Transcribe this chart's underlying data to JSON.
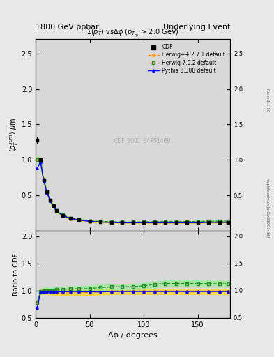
{
  "title_left": "1800 GeV ppbar",
  "title_right": "Underlying Event",
  "plot_title": "Σ(p_{T}) vsΔϕ (p_{Tη1} > 2.0 GeV)",
  "xlabel": "Δϕ / degrees",
  "ylabel_main": "⟨ p_T^{sum} ⟩ μm",
  "ylabel_ratio": "Ratio to CDF",
  "watermark": "CDF_2001_S4751469",
  "right_label_top": "Rivet 3.1.10",
  "right_label_bottom": "mcplots.cern.ch [arXiv:1306.3436]",
  "ylim_main": [
    0,
    2.7
  ],
  "ylim_ratio": [
    0.5,
    2.1
  ],
  "xlim": [
    0,
    180
  ],
  "bg_color": "#e8e8e8",
  "plot_bg_color": "#d8d8d8",
  "legend_entries": [
    "CDF",
    "Herwig++ 2.7.1 default",
    "Herwig 7.0.2 default",
    "Pythia 8.308 default"
  ],
  "colors": {
    "cdf": "#000000",
    "herwigpp": "#FF8C00",
    "herwig7": "#228B22",
    "pythia": "#0000FF"
  },
  "cdf_x": [
    1.5,
    4.5,
    7.5,
    10.5,
    13.5,
    16.5,
    19.5,
    25,
    32,
    40,
    50,
    60,
    70,
    80,
    90,
    100,
    110,
    120,
    130,
    140,
    150,
    160,
    170,
    178
  ],
  "cdf_y": [
    1.28,
    1.0,
    0.72,
    0.55,
    0.43,
    0.35,
    0.28,
    0.22,
    0.175,
    0.155,
    0.135,
    0.125,
    0.12,
    0.115,
    0.115,
    0.115,
    0.115,
    0.115,
    0.115,
    0.115,
    0.115,
    0.12,
    0.12,
    0.12
  ],
  "cdf_yerr": [
    0.05,
    0.03,
    0.025,
    0.02,
    0.015,
    0.012,
    0.01,
    0.008,
    0.006,
    0.005,
    0.004,
    0.004,
    0.004,
    0.004,
    0.004,
    0.004,
    0.004,
    0.004,
    0.004,
    0.004,
    0.004,
    0.004,
    0.004,
    0.004
  ],
  "herwigpp_x": [
    1.5,
    4.5,
    7.5,
    10.5,
    13.5,
    16.5,
    19.5,
    25,
    32,
    40,
    50,
    60,
    70,
    80,
    90,
    100,
    110,
    120,
    130,
    140,
    150,
    160,
    170,
    178
  ],
  "herwigpp_y": [
    1.0,
    0.98,
    0.71,
    0.54,
    0.42,
    0.34,
    0.27,
    0.21,
    0.17,
    0.15,
    0.13,
    0.122,
    0.118,
    0.113,
    0.113,
    0.113,
    0.113,
    0.113,
    0.113,
    0.113,
    0.113,
    0.118,
    0.118,
    0.118
  ],
  "herwig7_x": [
    1.5,
    4.5,
    7.5,
    10.5,
    13.5,
    16.5,
    19.5,
    25,
    32,
    40,
    50,
    60,
    70,
    80,
    90,
    100,
    110,
    120,
    130,
    140,
    150,
    160,
    170,
    178
  ],
  "herwig7_y": [
    1.0,
    0.98,
    0.72,
    0.55,
    0.43,
    0.35,
    0.285,
    0.225,
    0.18,
    0.16,
    0.14,
    0.132,
    0.128,
    0.123,
    0.123,
    0.125,
    0.128,
    0.13,
    0.13,
    0.13,
    0.13,
    0.135,
    0.135,
    0.135
  ],
  "pythia_x": [
    1.5,
    4.5,
    7.5,
    10.5,
    13.5,
    16.5,
    19.5,
    25,
    32,
    40,
    50,
    60,
    70,
    80,
    90,
    100,
    110,
    120,
    130,
    140,
    150,
    160,
    170,
    178
  ],
  "pythia_y": [
    0.88,
    0.97,
    0.7,
    0.54,
    0.42,
    0.34,
    0.275,
    0.215,
    0.172,
    0.152,
    0.132,
    0.122,
    0.118,
    0.113,
    0.113,
    0.113,
    0.113,
    0.113,
    0.113,
    0.113,
    0.113,
    0.118,
    0.118,
    0.118
  ],
  "herwigpp_band_color": "#FFD700",
  "herwig7_band_color": "#90EE90",
  "ratio_herwigpp": [
    0.78,
    0.975,
    0.986,
    0.982,
    0.977,
    0.971,
    0.964,
    0.955,
    0.971,
    0.968,
    0.963,
    0.976,
    0.983,
    0.983,
    0.983,
    0.983,
    0.983,
    0.983,
    0.983,
    0.983,
    0.983,
    0.983,
    0.983,
    0.983
  ],
  "ratio_herwig7": [
    0.78,
    0.98,
    1.0,
    1.0,
    1.0,
    1.0,
    1.018,
    1.023,
    1.029,
    1.032,
    1.037,
    1.056,
    1.067,
    1.07,
    1.07,
    1.087,
    1.113,
    1.13,
    1.13,
    1.13,
    1.13,
    1.125,
    1.125,
    1.125
  ],
  "ratio_pythia": [
    0.688,
    0.97,
    0.972,
    0.982,
    0.977,
    0.971,
    0.982,
    0.977,
    0.983,
    0.981,
    0.978,
    0.976,
    0.983,
    0.983,
    0.983,
    0.983,
    0.983,
    0.983,
    0.983,
    0.983,
    0.983,
    0.983,
    0.983,
    0.983
  ],
  "main_yticks": [
    0.5,
    1.0,
    1.5,
    2.0,
    2.5
  ],
  "ratio_yticks": [
    0.5,
    1.0,
    1.5,
    2.0
  ],
  "xticks": [
    0,
    50,
    100,
    150
  ]
}
